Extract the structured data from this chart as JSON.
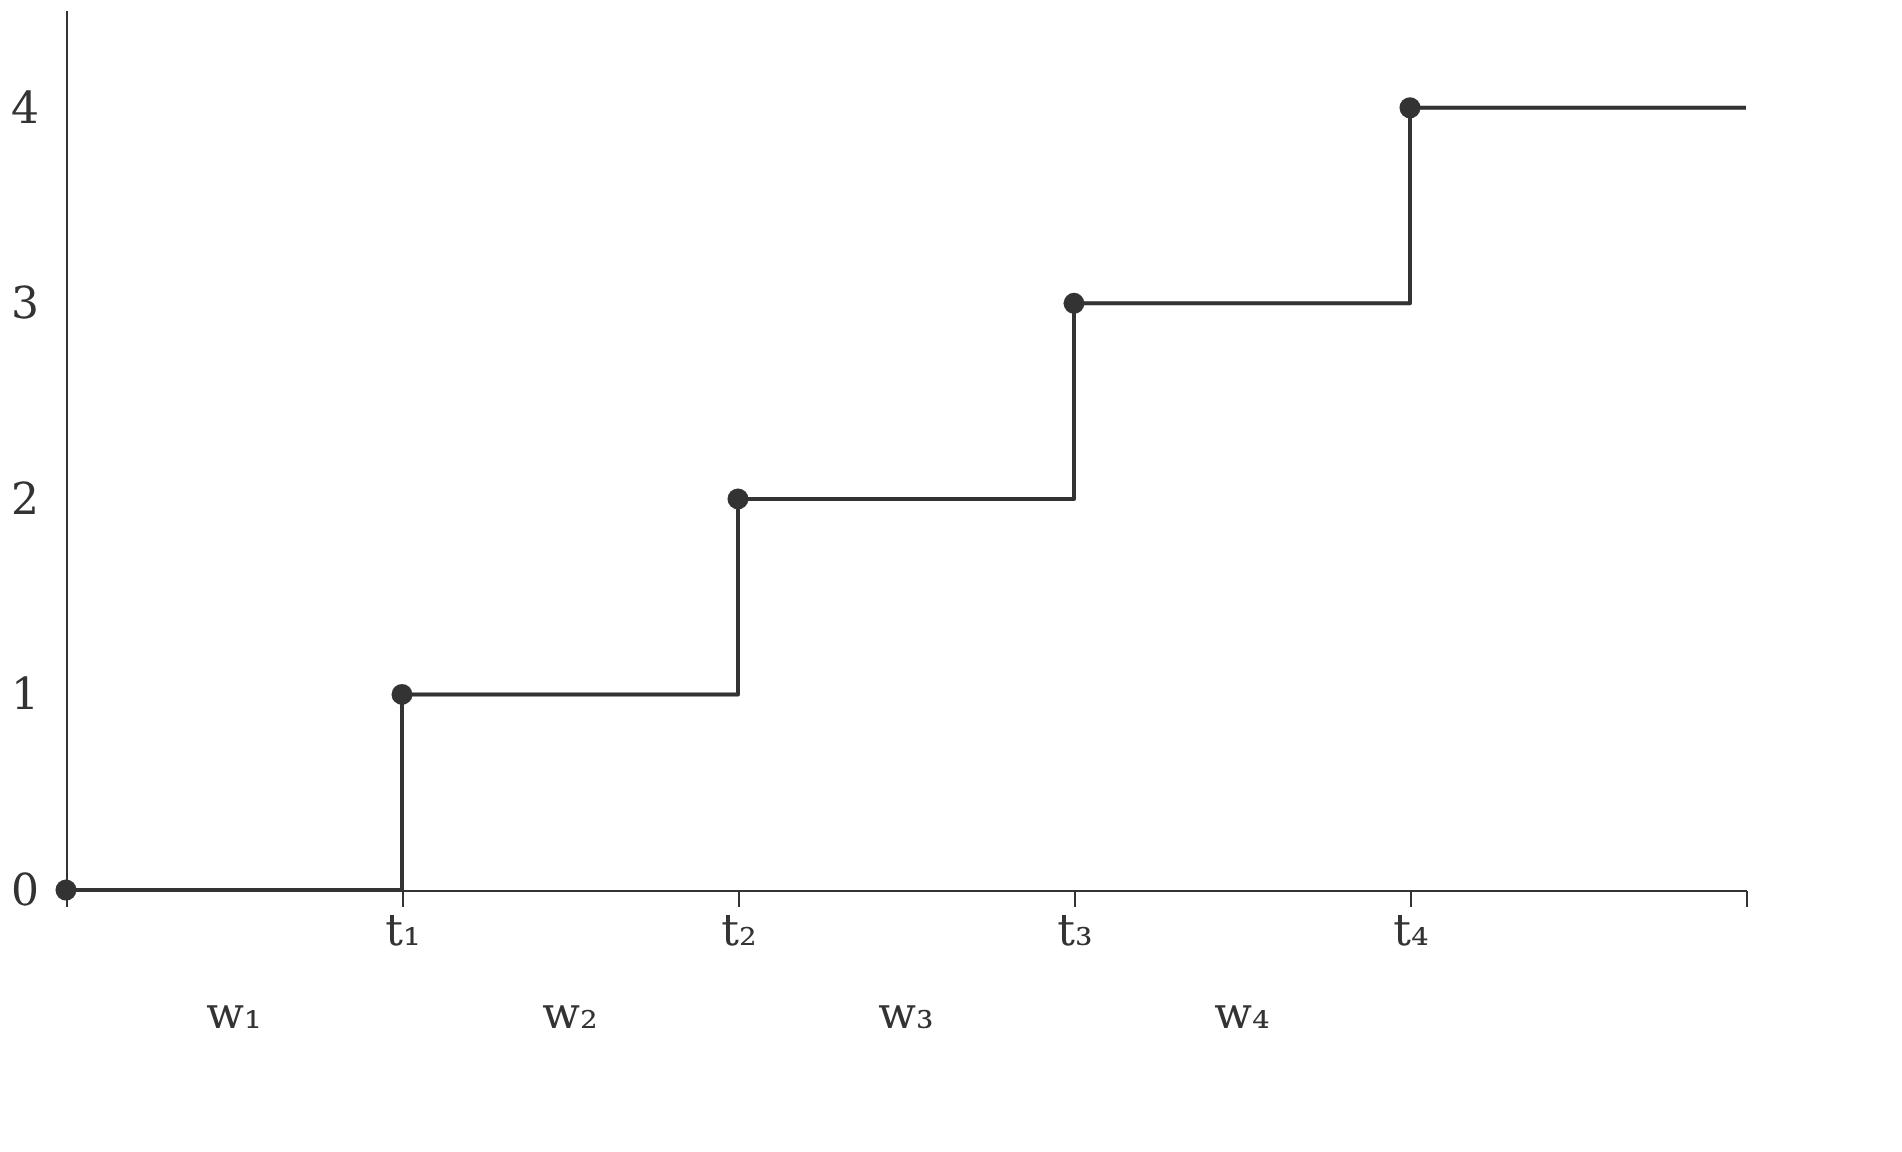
{
  "chart_data": {
    "type": "step",
    "categories": [
      null,
      "t₁",
      "t₂",
      "t₃",
      "t₄",
      null
    ],
    "values": [
      0,
      1,
      2,
      3,
      4,
      4
    ],
    "color": "#333333",
    "marker": "circle",
    "line_style": "solid",
    "grid": false,
    "ylim": [
      0,
      4.5
    ],
    "yticks": [
      0,
      1,
      2,
      3,
      4
    ],
    "annotations": [
      "w₁",
      "w₂",
      "w₃",
      "w₄"
    ]
  }
}
